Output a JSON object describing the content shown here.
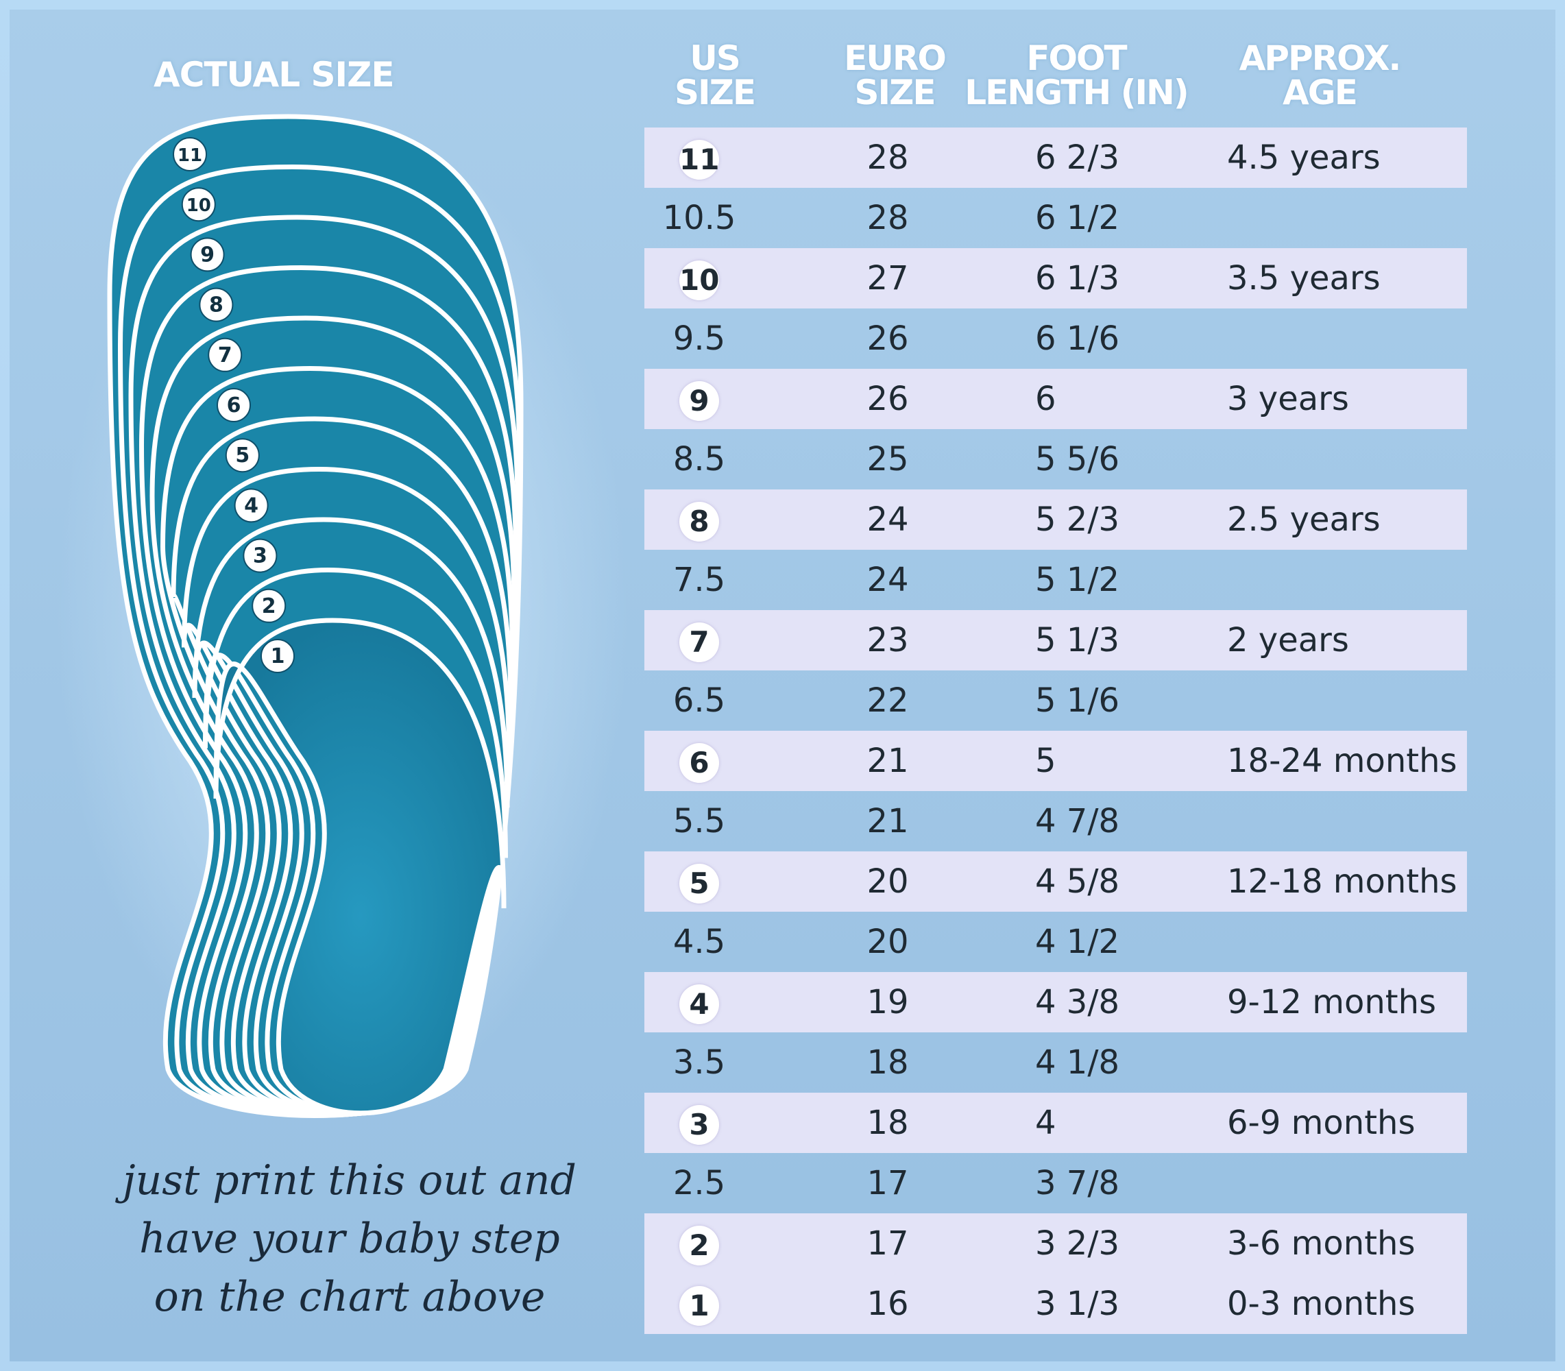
{
  "left_panel": {
    "title": "ACTUAL SIZE",
    "outline_labels": [
      "11",
      "10",
      "9",
      "8",
      "7",
      "6",
      "5",
      "4",
      "3",
      "2",
      "1"
    ],
    "caption_lines": [
      "just print this out and",
      "have your baby step",
      "on the chart above"
    ],
    "colors": {
      "sole_fill": "#1a86a8",
      "outline": "#ffffff"
    }
  },
  "table": {
    "headers": {
      "us_size": [
        "US",
        "SIZE"
      ],
      "euro_size": [
        "EURO",
        "SIZE"
      ],
      "foot_length": [
        "FOOT",
        "LENGTH (IN)"
      ],
      "age": [
        "APPROX.",
        "AGE"
      ]
    },
    "rows": [
      {
        "us": "11",
        "euro": "28",
        "foot": "6 2/3",
        "age": "4.5 years",
        "whole": true
      },
      {
        "us": "10.5",
        "euro": "28",
        "foot": "6 1/2",
        "age": "",
        "whole": false
      },
      {
        "us": "10",
        "euro": "27",
        "foot": "6 1/3",
        "age": "3.5 years",
        "whole": true
      },
      {
        "us": "9.5",
        "euro": "26",
        "foot": "6 1/6",
        "age": "",
        "whole": false
      },
      {
        "us": "9",
        "euro": "26",
        "foot": "6",
        "age": "3 years",
        "whole": true
      },
      {
        "us": "8.5",
        "euro": "25",
        "foot": "5 5/6",
        "age": "",
        "whole": false
      },
      {
        "us": "8",
        "euro": "24",
        "foot": "5 2/3",
        "age": "2.5 years",
        "whole": true
      },
      {
        "us": "7.5",
        "euro": "24",
        "foot": "5 1/2",
        "age": "",
        "whole": false
      },
      {
        "us": "7",
        "euro": "23",
        "foot": "5 1/3",
        "age": "2 years",
        "whole": true
      },
      {
        "us": "6.5",
        "euro": "22",
        "foot": "5 1/6",
        "age": "",
        "whole": false
      },
      {
        "us": "6",
        "euro": "21",
        "foot": "5",
        "age": "18-24 months",
        "whole": true
      },
      {
        "us": "5.5",
        "euro": "21",
        "foot": "4 7/8",
        "age": "",
        "whole": false
      },
      {
        "us": "5",
        "euro": "20",
        "foot": "4 5/8",
        "age": "12-18 months",
        "whole": true
      },
      {
        "us": "4.5",
        "euro": "20",
        "foot": "4 1/2",
        "age": "",
        "whole": false
      },
      {
        "us": "4",
        "euro": "19",
        "foot": "4 3/8",
        "age": "9-12 months",
        "whole": true
      },
      {
        "us": "3.5",
        "euro": "18",
        "foot": "4 1/8",
        "age": "",
        "whole": false
      },
      {
        "us": "3",
        "euro": "18",
        "foot": "4",
        "age": "6-9 months",
        "whole": true
      },
      {
        "us": "2.5",
        "euro": "17",
        "foot": "3 7/8",
        "age": "",
        "whole": false
      },
      {
        "us": "2",
        "euro": "17",
        "foot": "3 2/3",
        "age": "3-6 months",
        "whole": true
      },
      {
        "us": "1",
        "euro": "16",
        "foot": "3 1/3",
        "age": "0-3 months",
        "whole": true
      }
    ],
    "colors": {
      "shaded_row": "#e3e3f7",
      "background": "#9fc6e6"
    }
  }
}
